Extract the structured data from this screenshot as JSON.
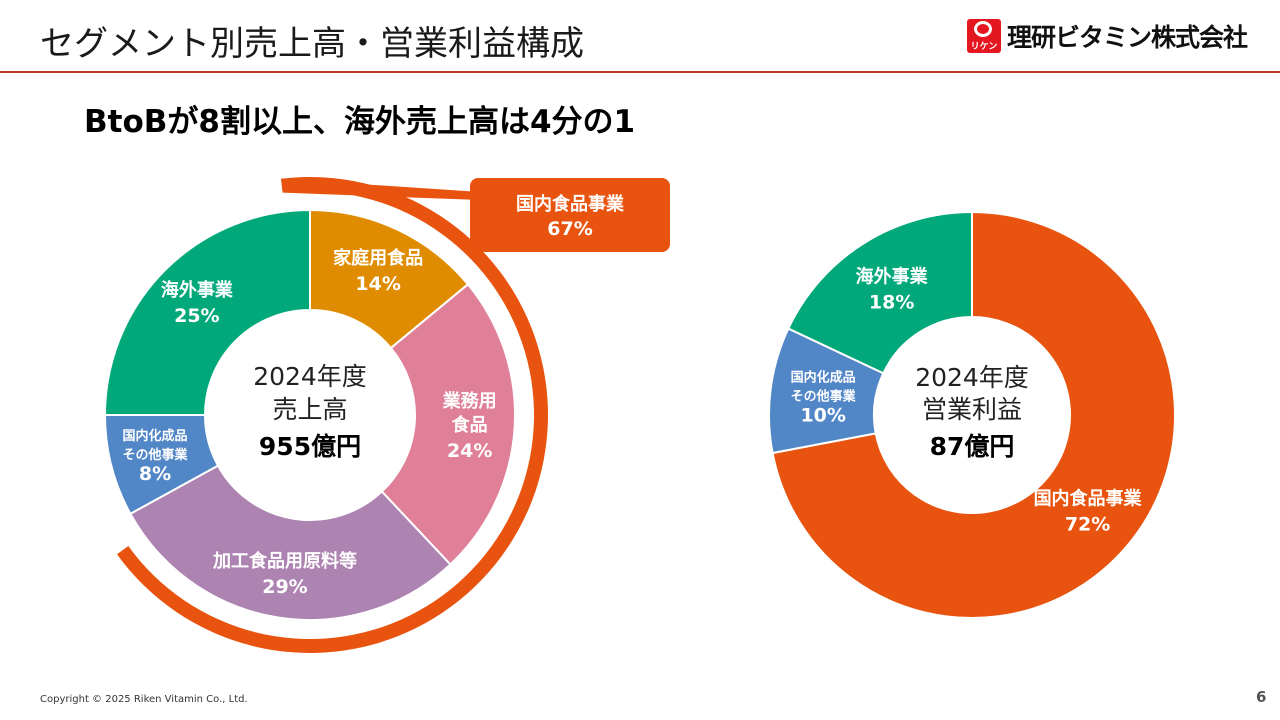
{
  "header": {
    "title": "セグメント別売上高・営業利益構成",
    "logo_mark_text": "リケン",
    "logo_text": "理研ビタミン株式会社"
  },
  "subtitle": "BtoBが8割以上、海外売上高は4分の1",
  "callout": {
    "label": "国内食品事業",
    "value": "67%"
  },
  "colors": {
    "header_rule": "#c0392b",
    "domestic_food": "#e8540f",
    "home_food": "#e08c00",
    "business_food": "#df7f98",
    "processed_materials": "#ad83b2",
    "chemicals_other": "#5186c7",
    "overseas": "#00a87a"
  },
  "chart_data": [
    {
      "type": "pie",
      "variant": "donut",
      "center_label": [
        "2024年度",
        "売上高"
      ],
      "center_value": "955億円",
      "slices": [
        {
          "label": [
            "家庭用食品"
          ],
          "value": 14,
          "display": "14%",
          "color": "#e08c00"
        },
        {
          "label": [
            "業務用",
            "食品"
          ],
          "value": 24,
          "display": "24%",
          "color": "#df7f98"
        },
        {
          "label": [
            "加工食品用原料等"
          ],
          "value": 29,
          "display": "29%",
          "color": "#ad83b2"
        },
        {
          "label": [
            "国内化成品",
            "その他事業"
          ],
          "value": 8,
          "display": "8%",
          "color": "#5186c7"
        },
        {
          "label": [
            "海外事業"
          ],
          "value": 25,
          "display": "25%",
          "color": "#00a87a"
        }
      ],
      "outer_arc": {
        "label": "国内食品事業",
        "value": 67,
        "display": "67%",
        "color": "#e8540f"
      }
    },
    {
      "type": "pie",
      "variant": "donut",
      "center_label": [
        "2024年度",
        "営業利益"
      ],
      "center_value": "87億円",
      "slices": [
        {
          "label": [
            "国内食品事業"
          ],
          "value": 72,
          "display": "72%",
          "color": "#e8540f"
        },
        {
          "label": [
            "国内化成品",
            "その他事業"
          ],
          "value": 10,
          "display": "10%",
          "color": "#5186c7"
        },
        {
          "label": [
            "海外事業"
          ],
          "value": 18,
          "display": "18%",
          "color": "#00a87a"
        }
      ]
    }
  ],
  "footer": {
    "copyright": "Copyright © 2025 Riken Vitamin Co., Ltd.",
    "page_number": "6"
  }
}
